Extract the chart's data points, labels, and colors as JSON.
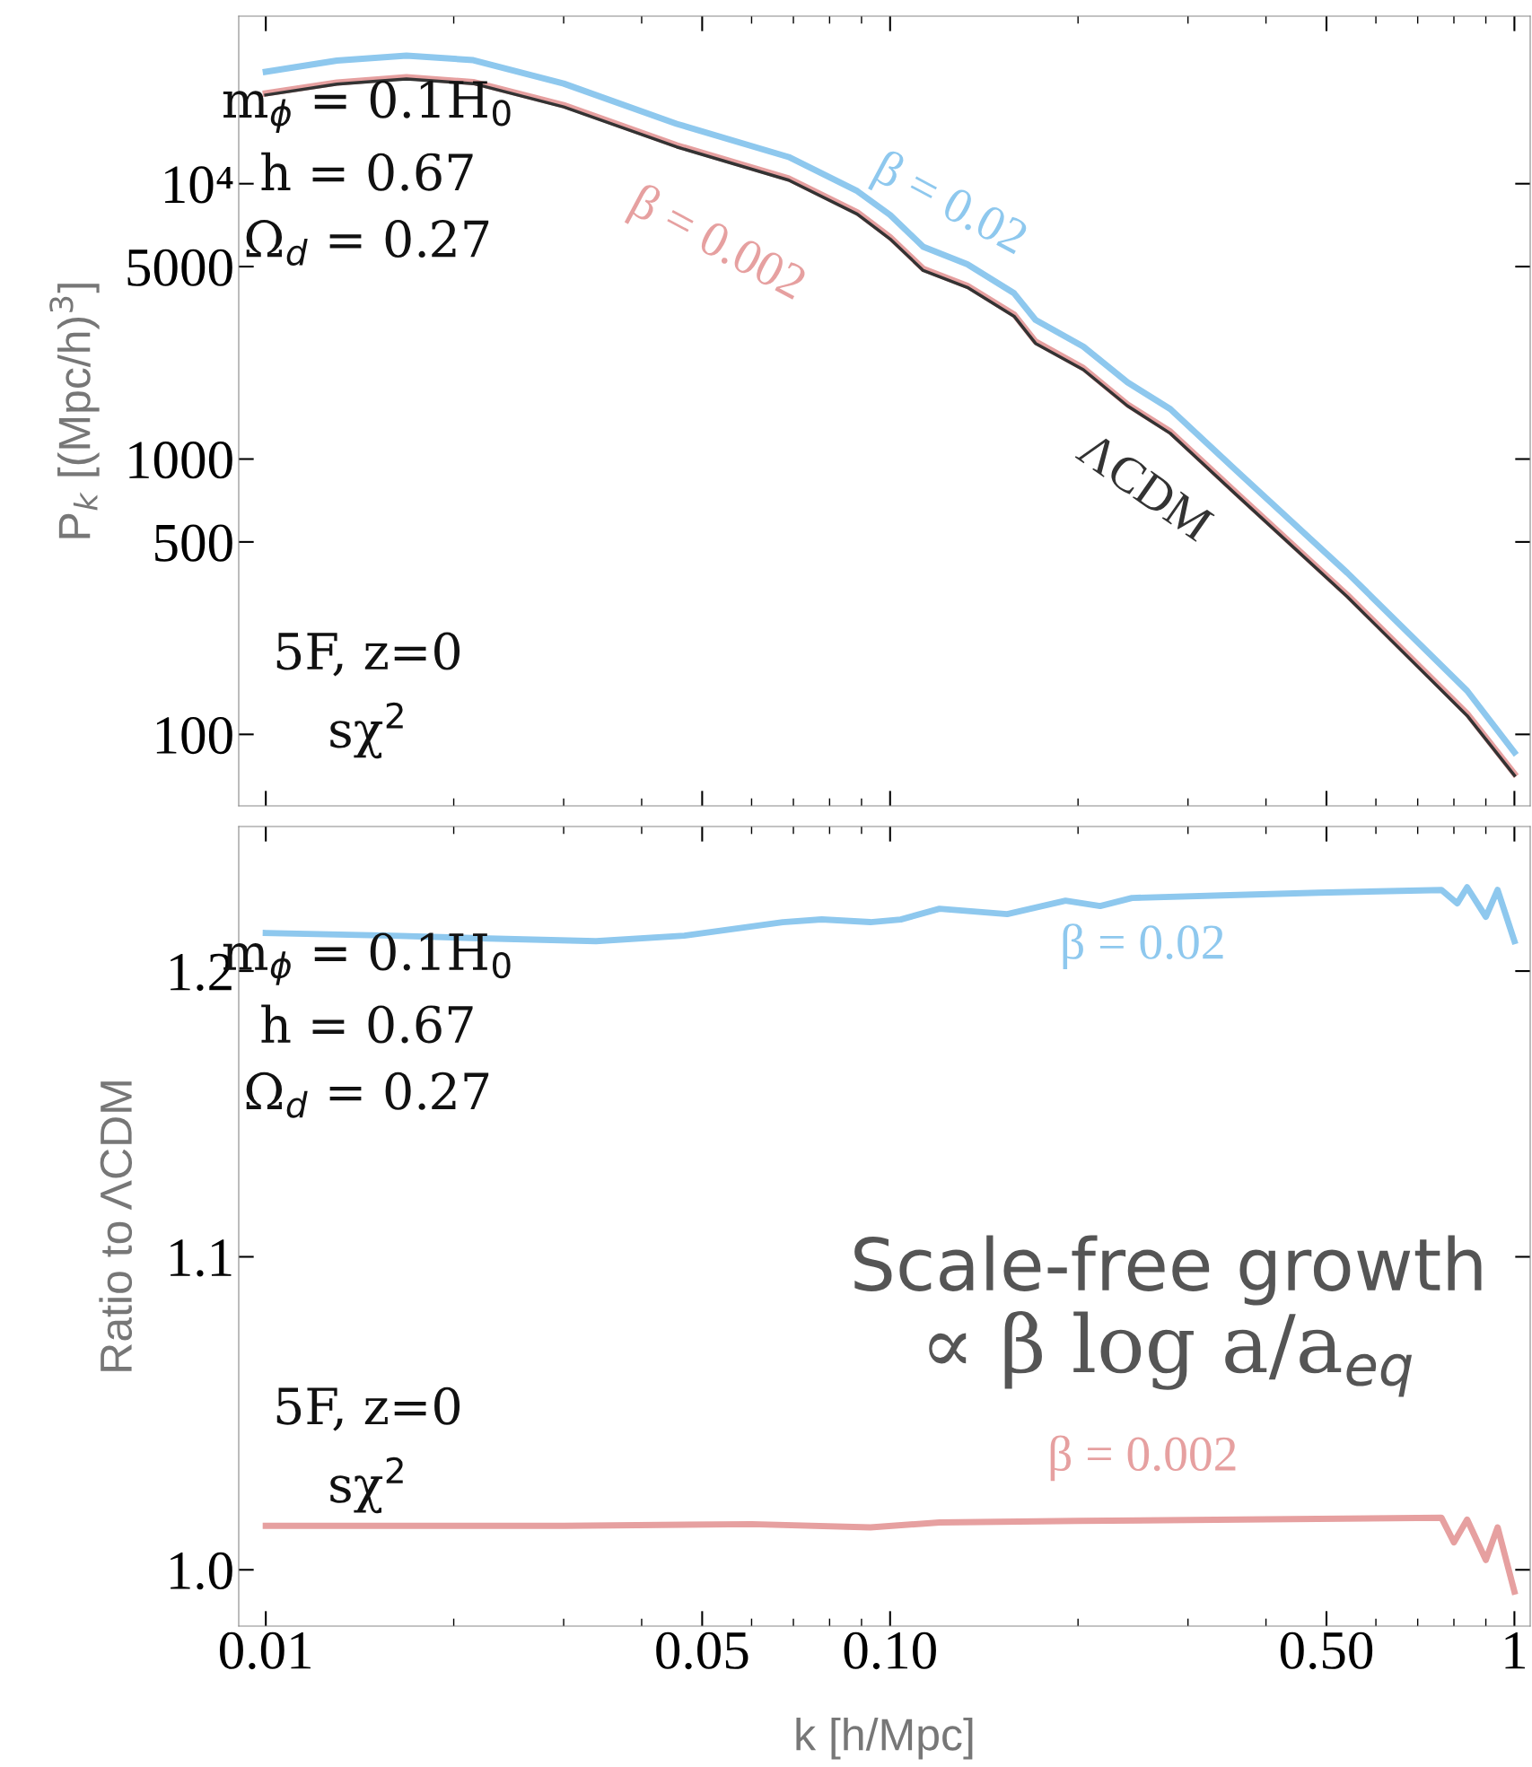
{
  "chart_data": [
    {
      "type": "line",
      "ylabel": "P$_{k}$ [(Mpc/h)$^{3}$]",
      "log": "xy",
      "xlim": [
        0.00905,
        1.06
      ],
      "ylim": [
        55,
        40600
      ],
      "xticks": [
        0.01,
        0.05,
        0.1,
        0.5,
        1
      ],
      "yticks": [
        {
          "value": 10000,
          "label": "10⁴"
        },
        5000,
        1000,
        500,
        100
      ],
      "tick_labels": "y",
      "annotations": [
        "m$_{ϕ}$ = 0.1H$_{0}$\nh = 0.67\nΩ$_{d}$ = 0.27",
        "5F, z=0\nsχ$^{2}$"
      ],
      "series": [
        {
          "name": "β = 0.02",
          "color": "#8ec8ee",
          "x": [
            0.01,
            0.013,
            0.0168,
            0.0215,
            0.03,
            0.0455,
            0.0688,
            0.0886,
            0.1,
            0.113,
            0.133,
            0.158,
            0.171,
            0.204,
            0.24,
            0.281,
            0.36,
            0.54,
            0.84,
            1.0
          ],
          "values": [
            25500,
            28000,
            29200,
            28100,
            23100,
            16500,
            12500,
            9400,
            7700,
            5900,
            5100,
            4000,
            3200,
            2560,
            1900,
            1520,
            900,
            386,
            144,
            86
          ]
        },
        {
          "name": "β = 0.002",
          "color": "#e6a0a0",
          "x": [
            0.01,
            0.013,
            0.0168,
            0.0215,
            0.03,
            0.0455,
            0.0688,
            0.0886,
            0.1,
            0.113,
            0.133,
            0.158,
            0.171,
            0.204,
            0.24,
            0.281,
            0.36,
            0.54,
            0.84,
            1.0
          ],
          "values": [
            21300,
            23300,
            24400,
            23400,
            19300,
            13800,
            10450,
            7870,
            6400,
            4910,
            4260,
            3350,
            2670,
            2140,
            1580,
            1260,
            747,
            321,
            119,
            72
          ]
        },
        {
          "name": "ΛCDM",
          "color": "#333333",
          "x": [
            0.01,
            0.013,
            0.0168,
            0.0215,
            0.03,
            0.0455,
            0.0688,
            0.0886,
            0.1,
            0.113,
            0.133,
            0.158,
            0.171,
            0.204,
            0.24,
            0.281,
            0.36,
            0.54,
            0.84,
            1.0
          ],
          "values": [
            21000,
            23000,
            24000,
            23100,
            19000,
            13600,
            10300,
            7750,
            6300,
            4840,
            4200,
            3300,
            2630,
            2110,
            1560,
            1240,
            736,
            316,
            117,
            71
          ]
        }
      ]
    },
    {
      "type": "line",
      "xlabel": "k [h/Mpc]",
      "ylabel": "Ratio to ΛCDM",
      "log": "xy",
      "xlim": [
        0.00905,
        1.06
      ],
      "ylim": [
        0.983,
        1.254
      ],
      "xticks": [
        {
          "value": 0.01,
          "label": "0.01"
        },
        {
          "value": 0.05,
          "label": "0.05"
        },
        {
          "value": 0.1,
          "label": "0.10"
        },
        {
          "value": 0.5,
          "label": "0.50"
        },
        {
          "value": 1,
          "label": "1"
        }
      ],
      "yticks": [
        {
          "value": 1.0,
          "label": "1.0"
        },
        {
          "value": 1.1,
          "label": "1.1"
        },
        {
          "value": 1.2,
          "label": "1.2"
        }
      ],
      "annotations": [
        "m$_{ϕ}$ = 0.1H$_{0}$\nh = 0.67\nΩ$_{d}$ = 0.27",
        "5F, z=0\nsχ$^{2}$",
        "Scale-free growth",
        "∝ β log a/a$_{eq}$"
      ],
      "series": [
        {
          "name": "β = 0.02",
          "color": "#8ec8ee",
          "x": [
            0.01,
            0.0159,
            0.0227,
            0.0338,
            0.0468,
            0.0673,
            0.0777,
            0.093,
            0.104,
            0.12,
            0.154,
            0.191,
            0.217,
            0.244,
            0.34,
            0.486,
            0.764,
            0.81,
            0.84,
            0.9,
            0.94,
            1.0
          ],
          "values": [
            1.214,
            1.213,
            1.212,
            1.211,
            1.213,
            1.218,
            1.219,
            1.218,
            1.219,
            1.223,
            1.221,
            1.226,
            1.224,
            1.227,
            1.228,
            1.229,
            1.23,
            1.225,
            1.231,
            1.22,
            1.23,
            1.211
          ]
        },
        {
          "name": "β = 0.002",
          "color": "#e6a0a0",
          "x": [
            0.01,
            0.03,
            0.06,
            0.093,
            0.12,
            0.2,
            0.4,
            0.764,
            0.8,
            0.84,
            0.9,
            0.94,
            1.0
          ],
          "values": [
            1.0135,
            1.0135,
            1.014,
            1.013,
            1.0145,
            1.015,
            1.0155,
            1.016,
            1.0084,
            1.0154,
            1.003,
            1.013,
            0.9934
          ]
        }
      ]
    }
  ]
}
